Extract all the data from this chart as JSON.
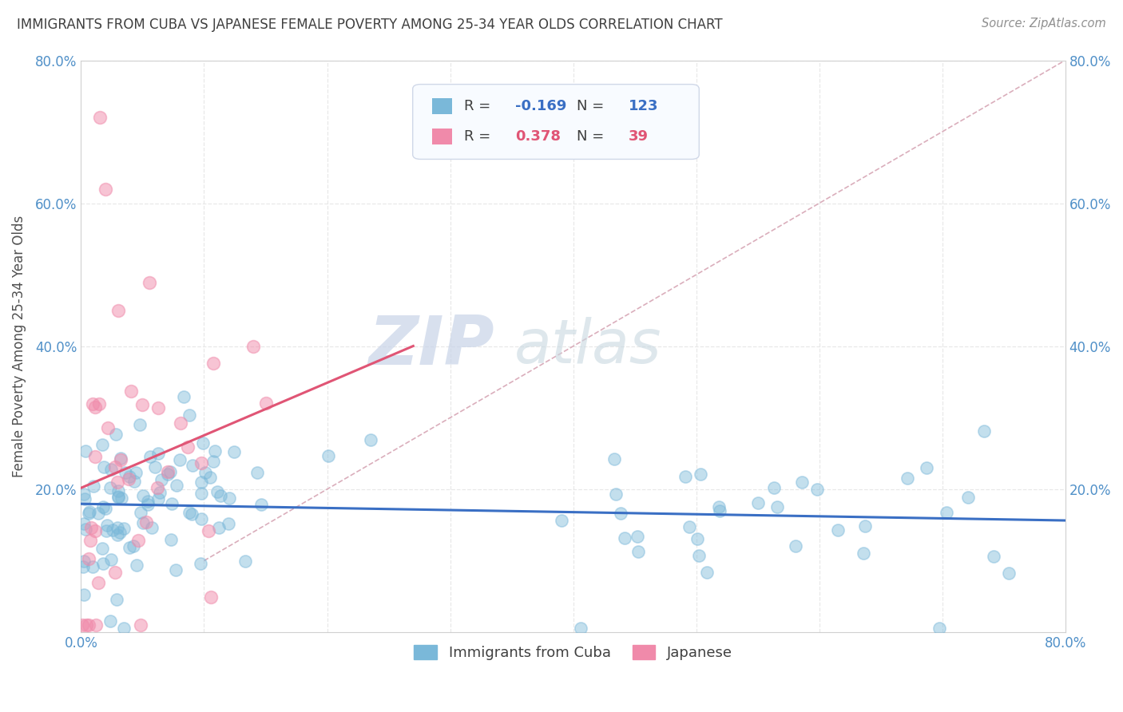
{
  "title": "IMMIGRANTS FROM CUBA VS JAPANESE FEMALE POVERTY AMONG 25-34 YEAR OLDS CORRELATION CHART",
  "source": "Source: ZipAtlas.com",
  "ylabel": "Female Poverty Among 25-34 Year Olds",
  "xlim": [
    0.0,
    0.8
  ],
  "ylim": [
    0.0,
    0.8
  ],
  "series1_color": "#7ab8d9",
  "series2_color": "#f08aaa",
  "series1_label": "Immigrants from Cuba",
  "series2_label": "Japanese",
  "R1": -0.169,
  "N1": 123,
  "R2": 0.378,
  "N2": 39,
  "trend1_color": "#3a6fc4",
  "trend2_color": "#e05575",
  "diag_color": "#d4a0b0",
  "watermark_zip": "ZIP",
  "watermark_atlas": "atlas",
  "watermark_color_zip": "#c8d4e8",
  "watermark_color_atlas": "#c8d8e0",
  "background_color": "#ffffff",
  "grid_color": "#e8e8e8",
  "title_color": "#404040",
  "label_color": "#505050",
  "tick_label_color": "#5090c8",
  "source_color": "#909090",
  "legend_edge_color": "#d0d8e8",
  "legend_face_color": "#f8fbff"
}
